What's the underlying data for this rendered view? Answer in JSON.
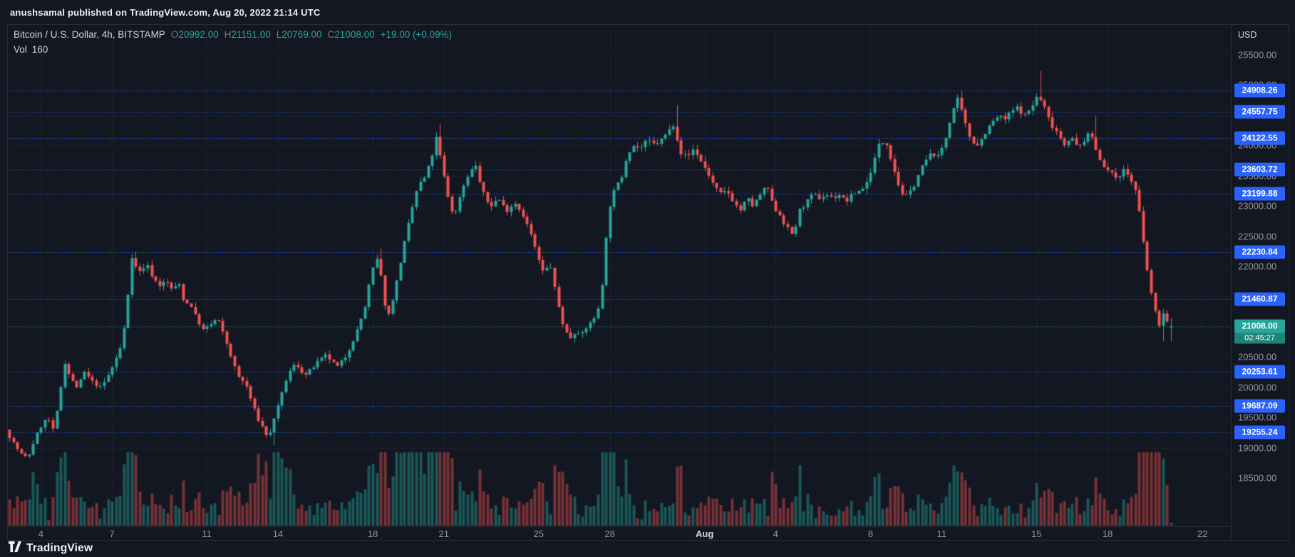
{
  "publish_bar": {
    "text": "anushsamal published on TradingView.com, Aug 20, 2022 21:14 UTC"
  },
  "legend": {
    "symbol": "Bitcoin / U.S. Dollar, 4h, BITSTAMP",
    "ohlc": [
      {
        "label": "O",
        "value": "20992.00"
      },
      {
        "label": "H",
        "value": "21151.00"
      },
      {
        "label": "L",
        "value": "20769.00"
      },
      {
        "label": "C",
        "value": "21008.00"
      }
    ],
    "change": "+19.00 (+0.09%)",
    "vol_label": "Vol",
    "vol_value": "160"
  },
  "price_scale": {
    "currency": "USD",
    "last_price": {
      "value": "21008.00",
      "countdown": "02:45:27"
    }
  },
  "footer": {
    "brand": "TradingView"
  },
  "colors": {
    "background": "#131722",
    "up": "#26a69a",
    "down": "#ef5350",
    "volume_up": "rgba(38,166,154,0.45)",
    "volume_down": "rgba(239,83,80,0.45)",
    "grid": "#1e222d",
    "alert_line": "#2962ff",
    "axis_text": "#9598a1",
    "last_price_badge": "#26a69a",
    "countdown_badge": "#1d8577"
  },
  "chart_data": {
    "type": "candlestick",
    "title": "Bitcoin / U.S. Dollar",
    "exchange": "BITSTAMP",
    "interval": "4h",
    "quote_currency": "USD",
    "x_range": [
      "2022-07-02 16:00 UTC",
      "2022-08-21 00:00 UTC"
    ],
    "x_axis_day0": "2022-07-03 00:00 UTC",
    "candles_per_day": 6,
    "y_range": [
      17700,
      25900
    ],
    "y_ticks": [
      18500,
      19000,
      19500,
      20000,
      20500,
      21000,
      21500,
      22000,
      22500,
      23000,
      23500,
      24000,
      24500,
      25000,
      25500
    ],
    "alert_levels": [
      24908.26,
      24557.75,
      24122.55,
      23603.72,
      23199.88,
      22230.84,
      21460.87,
      20253.61,
      19687.09,
      19255.24
    ],
    "last_candle": {
      "open": 20992,
      "high": 21151,
      "low": 20769,
      "close": 21008,
      "change": 19.0,
      "change_pct": 0.09
    },
    "last_volume": 160,
    "time_labels": [
      {
        "text": "4",
        "d": 1
      },
      {
        "text": "7",
        "d": 4
      },
      {
        "text": "11",
        "d": 8
      },
      {
        "text": "14",
        "d": 11
      },
      {
        "text": "18",
        "d": 15
      },
      {
        "text": "21",
        "d": 18
      },
      {
        "text": "25",
        "d": 22
      },
      {
        "text": "28",
        "d": 25
      },
      {
        "text": "Aug",
        "d": 29,
        "major": true
      },
      {
        "text": "4",
        "d": 32
      },
      {
        "text": "8",
        "d": 36
      },
      {
        "text": "11",
        "d": 39
      },
      {
        "text": "15",
        "d": 43
      },
      {
        "text": "18",
        "d": 46
      },
      {
        "text": "22",
        "d": 50
      }
    ],
    "price_path": [
      [
        -0.33,
        19300
      ],
      [
        0,
        19080
      ],
      [
        0.3,
        18900
      ],
      [
        0.6,
        18820
      ],
      [
        0.9,
        19150
      ],
      [
        1.2,
        19380
      ],
      [
        1.45,
        19500
      ],
      [
        1.7,
        19260
      ],
      [
        2.0,
        20010
      ],
      [
        2.15,
        20430
      ],
      [
        2.4,
        20150
      ],
      [
        2.7,
        19990
      ],
      [
        3.0,
        20250
      ],
      [
        3.3,
        20100
      ],
      [
        3.7,
        19990
      ],
      [
        4.0,
        20200
      ],
      [
        4.25,
        20400
      ],
      [
        4.6,
        20740
      ],
      [
        4.85,
        21600
      ],
      [
        5.0,
        22170
      ],
      [
        5.2,
        21950
      ],
      [
        5.4,
        21900
      ],
      [
        5.6,
        22060
      ],
      [
        5.9,
        21800
      ],
      [
        6.15,
        21690
      ],
      [
        6.45,
        21750
      ],
      [
        6.7,
        21620
      ],
      [
        7.0,
        21700
      ],
      [
        7.2,
        21420
      ],
      [
        7.5,
        21350
      ],
      [
        7.7,
        21150
      ],
      [
        8.0,
        20950
      ],
      [
        8.25,
        21010
      ],
      [
        8.6,
        21150
      ],
      [
        9.05,
        20670
      ],
      [
        9.45,
        20190
      ],
      [
        9.8,
        20050
      ],
      [
        10.15,
        19640
      ],
      [
        10.4,
        19400
      ],
      [
        10.6,
        19300
      ],
      [
        10.75,
        19120
      ],
      [
        10.9,
        19330
      ],
      [
        11.0,
        19500
      ],
      [
        11.2,
        19710
      ],
      [
        11.55,
        20190
      ],
      [
        11.9,
        20400
      ],
      [
        12.3,
        20190
      ],
      [
        12.8,
        20400
      ],
      [
        13.2,
        20530
      ],
      [
        13.65,
        20330
      ],
      [
        14.05,
        20530
      ],
      [
        14.5,
        20940
      ],
      [
        14.85,
        21350
      ],
      [
        15.1,
        21900
      ],
      [
        15.4,
        22170
      ],
      [
        15.6,
        21490
      ],
      [
        15.8,
        21150
      ],
      [
        16.1,
        21620
      ],
      [
        16.45,
        22310
      ],
      [
        16.8,
        22920
      ],
      [
        17.05,
        23330
      ],
      [
        17.35,
        23470
      ],
      [
        17.6,
        23740
      ],
      [
        17.85,
        24150
      ],
      [
        18.1,
        23600
      ],
      [
        18.35,
        23130
      ],
      [
        18.6,
        22790
      ],
      [
        18.85,
        23190
      ],
      [
        19.2,
        23540
      ],
      [
        19.5,
        23670
      ],
      [
        19.75,
        23260
      ],
      [
        20.1,
        22990
      ],
      [
        20.45,
        23130
      ],
      [
        20.8,
        22920
      ],
      [
        21.15,
        23060
      ],
      [
        21.5,
        22850
      ],
      [
        21.85,
        22510
      ],
      [
        22.1,
        22170
      ],
      [
        22.35,
        21900
      ],
      [
        22.65,
        22030
      ],
      [
        22.9,
        21490
      ],
      [
        23.2,
        21010
      ],
      [
        23.45,
        20800
      ],
      [
        23.75,
        20940
      ],
      [
        24.05,
        20870
      ],
      [
        24.3,
        21080
      ],
      [
        24.6,
        21150
      ],
      [
        24.85,
        21760
      ],
      [
        25.1,
        22920
      ],
      [
        25.35,
        23260
      ],
      [
        25.65,
        23470
      ],
      [
        25.9,
        23880
      ],
      [
        26.2,
        24010
      ],
      [
        26.45,
        23950
      ],
      [
        26.75,
        24080
      ],
      [
        27.05,
        24010
      ],
      [
        27.3,
        24080
      ],
      [
        27.6,
        24220
      ],
      [
        27.85,
        24360
      ],
      [
        28.15,
        23880
      ],
      [
        28.45,
        23810
      ],
      [
        28.7,
        23950
      ],
      [
        29.0,
        23740
      ],
      [
        29.3,
        23540
      ],
      [
        29.55,
        23330
      ],
      [
        29.85,
        23190
      ],
      [
        30.1,
        23260
      ],
      [
        30.4,
        23060
      ],
      [
        30.65,
        22920
      ],
      [
        30.95,
        23130
      ],
      [
        31.2,
        22990
      ],
      [
        31.5,
        23190
      ],
      [
        31.8,
        23330
      ],
      [
        32.05,
        22990
      ],
      [
        32.35,
        22850
      ],
      [
        32.6,
        22650
      ],
      [
        32.9,
        22510
      ],
      [
        33.15,
        22920
      ],
      [
        33.45,
        23060
      ],
      [
        33.75,
        23190
      ],
      [
        34.0,
        23130
      ],
      [
        34.3,
        23190
      ],
      [
        34.55,
        23130
      ],
      [
        34.85,
        23190
      ],
      [
        35.1,
        23060
      ],
      [
        35.4,
        23190
      ],
      [
        35.7,
        23260
      ],
      [
        35.95,
        23330
      ],
      [
        36.25,
        23670
      ],
      [
        36.5,
        24010
      ],
      [
        36.8,
        24080
      ],
      [
        37.05,
        23740
      ],
      [
        37.35,
        23330
      ],
      [
        37.6,
        23130
      ],
      [
        37.9,
        23260
      ],
      [
        38.2,
        23540
      ],
      [
        38.45,
        23740
      ],
      [
        38.75,
        23880
      ],
      [
        39.0,
        23810
      ],
      [
        39.3,
        24080
      ],
      [
        39.6,
        24560
      ],
      [
        39.85,
        24770
      ],
      [
        40.15,
        24360
      ],
      [
        40.4,
        24080
      ],
      [
        40.7,
        24010
      ],
      [
        41.0,
        24220
      ],
      [
        41.25,
        24360
      ],
      [
        41.55,
        24490
      ],
      [
        41.8,
        24420
      ],
      [
        42.1,
        24560
      ],
      [
        42.35,
        24630
      ],
      [
        42.65,
        24490
      ],
      [
        42.95,
        24630
      ],
      [
        43.2,
        24830
      ],
      [
        43.5,
        24630
      ],
      [
        43.75,
        24360
      ],
      [
        44.05,
        24220
      ],
      [
        44.3,
        24010
      ],
      [
        44.6,
        24150
      ],
      [
        44.9,
        23950
      ],
      [
        45.15,
        24080
      ],
      [
        45.45,
        24220
      ],
      [
        45.7,
        23880
      ],
      [
        46.0,
        23670
      ],
      [
        46.25,
        23540
      ],
      [
        46.55,
        23470
      ],
      [
        46.85,
        23600
      ],
      [
        47.1,
        23470
      ],
      [
        47.4,
        23190
      ],
      [
        47.65,
        22440
      ],
      [
        47.9,
        21760
      ],
      [
        48.1,
        21350
      ],
      [
        48.3,
        21010
      ],
      [
        48.5,
        21220
      ],
      [
        48.65,
        21080
      ],
      [
        48.83,
        21008
      ]
    ],
    "wick_events": [
      [
        5.0,
        22240
      ],
      [
        10.75,
        19040
      ],
      [
        15.4,
        22300
      ],
      [
        17.85,
        24360
      ],
      [
        23.45,
        20730
      ],
      [
        27.85,
        24670
      ],
      [
        39.85,
        24910
      ],
      [
        43.2,
        25240
      ],
      [
        45.45,
        24490
      ],
      [
        48.3,
        20760
      ]
    ],
    "volume_spikes": [
      [
        0.5,
        1.7
      ],
      [
        2.2,
        1.4
      ],
      [
        5.0,
        2.6
      ],
      [
        6.5,
        1.3
      ],
      [
        8.3,
        1.4
      ],
      [
        10.3,
        2.1
      ],
      [
        10.9,
        2.4
      ],
      [
        11.5,
        1.6
      ],
      [
        13.0,
        1.3
      ],
      [
        15.3,
        1.9
      ],
      [
        16.1,
        1.5
      ],
      [
        16.8,
        3.2
      ],
      [
        17.3,
        2.3
      ],
      [
        17.8,
        2.6
      ],
      [
        18.3,
        1.7
      ],
      [
        19.3,
        1.5
      ],
      [
        20.5,
        1.3
      ],
      [
        22.3,
        1.6
      ],
      [
        23.4,
        1.7
      ],
      [
        25.0,
        2.8
      ],
      [
        25.6,
        1.6
      ],
      [
        26.8,
        1.3
      ],
      [
        27.9,
        1.9
      ],
      [
        29.5,
        1.4
      ],
      [
        31.8,
        1.5
      ],
      [
        33.0,
        1.4
      ],
      [
        36.5,
        1.5
      ],
      [
        37.5,
        1.3
      ],
      [
        39.7,
        2.1
      ],
      [
        41.3,
        1.3
      ],
      [
        43.2,
        1.8
      ],
      [
        44.5,
        1.4
      ],
      [
        45.4,
        1.5
      ],
      [
        46.8,
        1.3
      ],
      [
        47.7,
        3.0
      ],
      [
        48.1,
        2.0
      ],
      [
        48.5,
        1.4
      ]
    ]
  }
}
